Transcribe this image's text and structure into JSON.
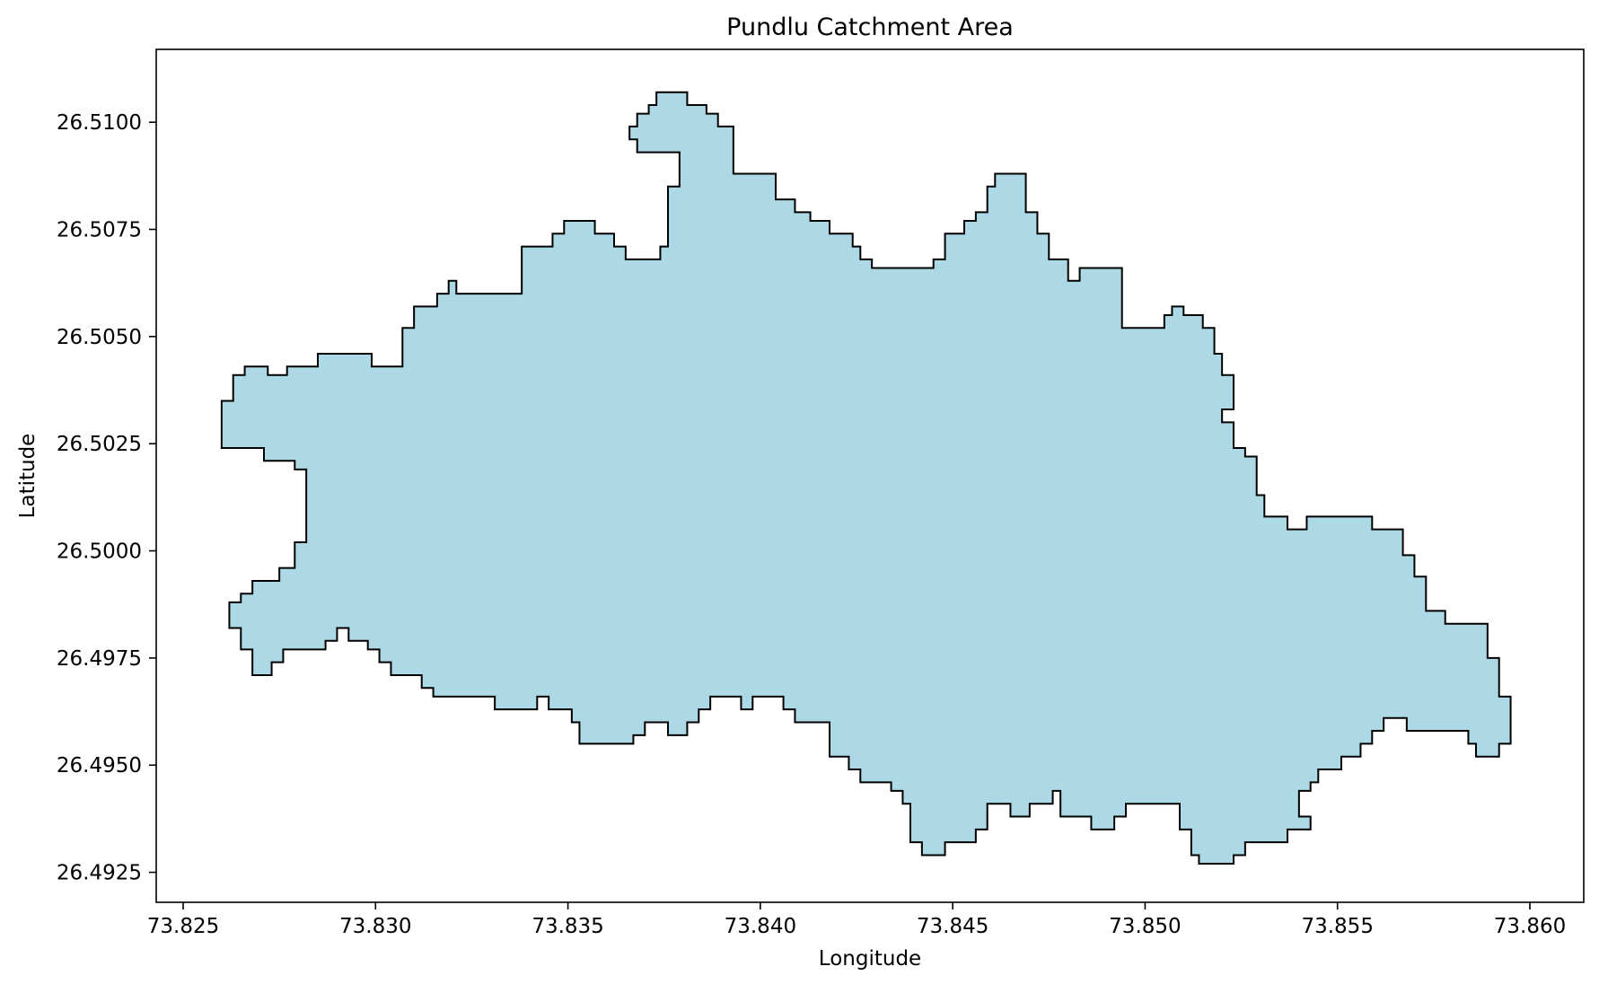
{
  "chart_data": {
    "type": "map",
    "title": "Pundlu Catchment Area",
    "xlabel": "Longitude",
    "ylabel": "Latitude",
    "xlim": [
      73.8243,
      73.8614
    ],
    "ylim": [
      26.4918,
      26.5117
    ],
    "xticks": [
      73.825,
      73.83,
      73.835,
      73.84,
      73.845,
      73.85,
      73.855,
      73.86
    ],
    "xtick_labels": [
      "73.825",
      "73.830",
      "73.835",
      "73.840",
      "73.845",
      "73.850",
      "73.855",
      "73.860"
    ],
    "yticks": [
      26.4925,
      26.495,
      26.4975,
      26.5,
      26.5025,
      26.505,
      26.5075,
      26.51
    ],
    "ytick_labels": [
      "26.4925",
      "26.4950",
      "26.4975",
      "26.5000",
      "26.5025",
      "26.5050",
      "26.5075",
      "26.5100"
    ],
    "grid": false,
    "fill_color": "#add8e6",
    "edge_color": "#000000",
    "polygon": [
      [
        73.8375,
        26.5107
      ],
      [
        73.8381,
        26.5107
      ],
      [
        73.8381,
        26.5104
      ],
      [
        73.8386,
        26.5104
      ],
      [
        73.8386,
        26.5102
      ],
      [
        73.8389,
        26.5102
      ],
      [
        73.8389,
        26.5099
      ],
      [
        73.8393,
        26.5099
      ],
      [
        73.8393,
        26.5088
      ],
      [
        73.8404,
        26.5088
      ],
      [
        73.8404,
        26.5082
      ],
      [
        73.8409,
        26.5082
      ],
      [
        73.8409,
        26.5079
      ],
      [
        73.8413,
        26.5079
      ],
      [
        73.8413,
        26.5077
      ],
      [
        73.8418,
        26.5077
      ],
      [
        73.8418,
        26.5074
      ],
      [
        73.8424,
        26.5074
      ],
      [
        73.8424,
        26.5071
      ],
      [
        73.8426,
        26.5071
      ],
      [
        73.8426,
        26.5068
      ],
      [
        73.8429,
        26.5068
      ],
      [
        73.8429,
        26.5066
      ],
      [
        73.8445,
        26.5066
      ],
      [
        73.8445,
        26.5068
      ],
      [
        73.8448,
        26.5068
      ],
      [
        73.8448,
        26.5074
      ],
      [
        73.8453,
        26.5074
      ],
      [
        73.8453,
        26.5077
      ],
      [
        73.8456,
        26.5077
      ],
      [
        73.8456,
        26.5079
      ],
      [
        73.8459,
        26.5079
      ],
      [
        73.8459,
        26.5085
      ],
      [
        73.8461,
        26.5085
      ],
      [
        73.8461,
        26.5088
      ],
      [
        73.8469,
        26.5088
      ],
      [
        73.8469,
        26.5079
      ],
      [
        73.8472,
        26.5079
      ],
      [
        73.8472,
        26.5074
      ],
      [
        73.8475,
        26.5074
      ],
      [
        73.8475,
        26.5068
      ],
      [
        73.848,
        26.5068
      ],
      [
        73.848,
        26.5063
      ],
      [
        73.8483,
        26.5063
      ],
      [
        73.8483,
        26.5066
      ],
      [
        73.8494,
        26.5066
      ],
      [
        73.8494,
        26.5052
      ],
      [
        73.8505,
        26.5052
      ],
      [
        73.8505,
        26.5055
      ],
      [
        73.8507,
        26.5055
      ],
      [
        73.8507,
        26.5057
      ],
      [
        73.851,
        26.5057
      ],
      [
        73.851,
        26.5055
      ],
      [
        73.8515,
        26.5055
      ],
      [
        73.8515,
        26.5052
      ],
      [
        73.8518,
        26.5052
      ],
      [
        73.8518,
        26.5046
      ],
      [
        73.852,
        26.5046
      ],
      [
        73.852,
        26.5041
      ],
      [
        73.8523,
        26.5041
      ],
      [
        73.8523,
        26.5033
      ],
      [
        73.852,
        26.5033
      ],
      [
        73.852,
        26.503
      ],
      [
        73.8523,
        26.503
      ],
      [
        73.8523,
        26.5024
      ],
      [
        73.8526,
        26.5024
      ],
      [
        73.8526,
        26.5022
      ],
      [
        73.8529,
        26.5022
      ],
      [
        73.8529,
        26.5013
      ],
      [
        73.8531,
        26.5013
      ],
      [
        73.8531,
        26.5008
      ],
      [
        73.8537,
        26.5008
      ],
      [
        73.8537,
        26.5005
      ],
      [
        73.8542,
        26.5005
      ],
      [
        73.8542,
        26.5008
      ],
      [
        73.8559,
        26.5008
      ],
      [
        73.8559,
        26.5005
      ],
      [
        73.8567,
        26.5005
      ],
      [
        73.8567,
        26.4999
      ],
      [
        73.857,
        26.4999
      ],
      [
        73.857,
        26.4994
      ],
      [
        73.8573,
        26.4994
      ],
      [
        73.8573,
        26.4986
      ],
      [
        73.8578,
        26.4986
      ],
      [
        73.8578,
        26.4983
      ],
      [
        73.8589,
        26.4983
      ],
      [
        73.8589,
        26.4975
      ],
      [
        73.8592,
        26.4975
      ],
      [
        73.8592,
        26.4966
      ],
      [
        73.8595,
        26.4966
      ],
      [
        73.8595,
        26.4955
      ],
      [
        73.8592,
        26.4955
      ],
      [
        73.8592,
        26.4952
      ],
      [
        73.8586,
        26.4952
      ],
      [
        73.8586,
        26.4955
      ],
      [
        73.8584,
        26.4955
      ],
      [
        73.8584,
        26.4958
      ],
      [
        73.8568,
        26.4958
      ],
      [
        73.8568,
        26.4961
      ],
      [
        73.8562,
        26.4961
      ],
      [
        73.8562,
        26.4958
      ],
      [
        73.8559,
        26.4958
      ],
      [
        73.8559,
        26.4955
      ],
      [
        73.8556,
        26.4955
      ],
      [
        73.8556,
        26.4952
      ],
      [
        73.8551,
        26.4952
      ],
      [
        73.8551,
        26.4949
      ],
      [
        73.8545,
        26.4949
      ],
      [
        73.8545,
        26.4946
      ],
      [
        73.8543,
        26.4946
      ],
      [
        73.8543,
        26.4944
      ],
      [
        73.854,
        26.4944
      ],
      [
        73.854,
        26.4938
      ],
      [
        73.8543,
        26.4938
      ],
      [
        73.8543,
        26.4935
      ],
      [
        73.8537,
        26.4935
      ],
      [
        73.8537,
        26.4932
      ],
      [
        73.8526,
        26.4932
      ],
      [
        73.8526,
        26.4929
      ],
      [
        73.8523,
        26.4929
      ],
      [
        73.8523,
        26.4927
      ],
      [
        73.8514,
        26.4927
      ],
      [
        73.8514,
        26.4929
      ],
      [
        73.8512,
        26.4929
      ],
      [
        73.8512,
        26.4935
      ],
      [
        73.8509,
        26.4935
      ],
      [
        73.8509,
        26.4941
      ],
      [
        73.8495,
        26.4941
      ],
      [
        73.8495,
        26.4938
      ],
      [
        73.8492,
        26.4938
      ],
      [
        73.8492,
        26.4935
      ],
      [
        73.8486,
        26.4935
      ],
      [
        73.8486,
        26.4938
      ],
      [
        73.8478,
        26.4938
      ],
      [
        73.8478,
        26.4944
      ],
      [
        73.8476,
        26.4944
      ],
      [
        73.8476,
        26.4941
      ],
      [
        73.847,
        26.4941
      ],
      [
        73.847,
        26.4938
      ],
      [
        73.8465,
        26.4938
      ],
      [
        73.8465,
        26.4941
      ],
      [
        73.8459,
        26.4941
      ],
      [
        73.8459,
        26.4935
      ],
      [
        73.8456,
        26.4935
      ],
      [
        73.8456,
        26.4932
      ],
      [
        73.8448,
        26.4932
      ],
      [
        73.8448,
        26.4929
      ],
      [
        73.8442,
        26.4929
      ],
      [
        73.8442,
        26.4932
      ],
      [
        73.8439,
        26.4932
      ],
      [
        73.8439,
        26.4941
      ],
      [
        73.8437,
        26.4941
      ],
      [
        73.8437,
        26.4944
      ],
      [
        73.8434,
        26.4944
      ],
      [
        73.8434,
        26.4946
      ],
      [
        73.8426,
        26.4946
      ],
      [
        73.8426,
        26.4949
      ],
      [
        73.8423,
        26.4949
      ],
      [
        73.8423,
        26.4952
      ],
      [
        73.8418,
        26.4952
      ],
      [
        73.8418,
        26.496
      ],
      [
        73.8409,
        26.496
      ],
      [
        73.8409,
        26.4963
      ],
      [
        73.8406,
        26.4963
      ],
      [
        73.8406,
        26.4966
      ],
      [
        73.8398,
        26.4966
      ],
      [
        73.8398,
        26.4963
      ],
      [
        73.8395,
        26.4963
      ],
      [
        73.8395,
        26.4966
      ],
      [
        73.8387,
        26.4966
      ],
      [
        73.8387,
        26.4963
      ],
      [
        73.8384,
        26.4963
      ],
      [
        73.8384,
        26.496
      ],
      [
        73.8381,
        26.496
      ],
      [
        73.8381,
        26.4957
      ],
      [
        73.8376,
        26.4957
      ],
      [
        73.8376,
        26.496
      ],
      [
        73.837,
        26.496
      ],
      [
        73.837,
        26.4957
      ],
      [
        73.8367,
        26.4957
      ],
      [
        73.8367,
        26.4955
      ],
      [
        73.8353,
        26.4955
      ],
      [
        73.8353,
        26.496
      ],
      [
        73.8351,
        26.496
      ],
      [
        73.8351,
        26.4963
      ],
      [
        73.8345,
        26.4963
      ],
      [
        73.8345,
        26.4966
      ],
      [
        73.8342,
        26.4966
      ],
      [
        73.8342,
        26.4963
      ],
      [
        73.8331,
        26.4963
      ],
      [
        73.8331,
        26.4966
      ],
      [
        73.8315,
        26.4966
      ],
      [
        73.8315,
        26.4968
      ],
      [
        73.8312,
        26.4968
      ],
      [
        73.8312,
        26.4971
      ],
      [
        73.8304,
        26.4971
      ],
      [
        73.8304,
        26.4974
      ],
      [
        73.8301,
        26.4974
      ],
      [
        73.8301,
        26.4977
      ],
      [
        73.8298,
        26.4977
      ],
      [
        73.8298,
        26.4979
      ],
      [
        73.8293,
        26.4979
      ],
      [
        73.8293,
        26.4982
      ],
      [
        73.829,
        26.4982
      ],
      [
        73.829,
        26.4979
      ],
      [
        73.8287,
        26.4979
      ],
      [
        73.8287,
        26.4977
      ],
      [
        73.8276,
        26.4977
      ],
      [
        73.8276,
        26.4974
      ],
      [
        73.8273,
        26.4974
      ],
      [
        73.8273,
        26.4971
      ],
      [
        73.8268,
        26.4971
      ],
      [
        73.8268,
        26.4977
      ],
      [
        73.8265,
        26.4977
      ],
      [
        73.8265,
        26.4982
      ],
      [
        73.8262,
        26.4982
      ],
      [
        73.8262,
        26.4988
      ],
      [
        73.8265,
        26.4988
      ],
      [
        73.8265,
        26.499
      ],
      [
        73.8268,
        26.499
      ],
      [
        73.8268,
        26.4993
      ],
      [
        73.8275,
        26.4993
      ],
      [
        73.8275,
        26.4996
      ],
      [
        73.8279,
        26.4996
      ],
      [
        73.8279,
        26.5002
      ],
      [
        73.8282,
        26.5002
      ],
      [
        73.8282,
        26.5019
      ],
      [
        73.8279,
        26.5019
      ],
      [
        73.8279,
        26.5021
      ],
      [
        73.8271,
        26.5021
      ],
      [
        73.8271,
        26.5024
      ],
      [
        73.826,
        26.5024
      ],
      [
        73.826,
        26.5035
      ],
      [
        73.8263,
        26.5035
      ],
      [
        73.8263,
        26.5041
      ],
      [
        73.8266,
        26.5041
      ],
      [
        73.8266,
        26.5043
      ],
      [
        73.8272,
        26.5043
      ],
      [
        73.8272,
        26.5041
      ],
      [
        73.8277,
        26.5041
      ],
      [
        73.8277,
        26.5043
      ],
      [
        73.8285,
        26.5043
      ],
      [
        73.8285,
        26.5046
      ],
      [
        73.8299,
        26.5046
      ],
      [
        73.8299,
        26.5043
      ],
      [
        73.8307,
        26.5043
      ],
      [
        73.8307,
        26.5052
      ],
      [
        73.831,
        26.5052
      ],
      [
        73.831,
        26.5057
      ],
      [
        73.8316,
        26.5057
      ],
      [
        73.8316,
        26.506
      ],
      [
        73.8319,
        26.506
      ],
      [
        73.8319,
        26.5063
      ],
      [
        73.8321,
        26.5063
      ],
      [
        73.8321,
        26.506
      ],
      [
        73.8338,
        26.506
      ],
      [
        73.8338,
        26.5071
      ],
      [
        73.8346,
        26.5071
      ],
      [
        73.8346,
        26.5074
      ],
      [
        73.8349,
        26.5074
      ],
      [
        73.8349,
        26.5077
      ],
      [
        73.8357,
        26.5077
      ],
      [
        73.8357,
        26.5074
      ],
      [
        73.8362,
        26.5074
      ],
      [
        73.8362,
        26.5071
      ],
      [
        73.8365,
        26.5071
      ],
      [
        73.8365,
        26.5068
      ],
      [
        73.8374,
        26.5068
      ],
      [
        73.8374,
        26.5071
      ],
      [
        73.8376,
        26.5071
      ],
      [
        73.8376,
        26.5085
      ],
      [
        73.8379,
        26.5085
      ],
      [
        73.8379,
        26.5093
      ],
      [
        73.8368,
        26.5093
      ],
      [
        73.8368,
        26.5096
      ],
      [
        73.8366,
        26.5096
      ],
      [
        73.8366,
        26.5099
      ],
      [
        73.8368,
        26.5099
      ],
      [
        73.8368,
        26.5102
      ],
      [
        73.8371,
        26.5102
      ],
      [
        73.8371,
        26.5104
      ],
      [
        73.8373,
        26.5104
      ],
      [
        73.8373,
        26.5107
      ]
    ]
  }
}
